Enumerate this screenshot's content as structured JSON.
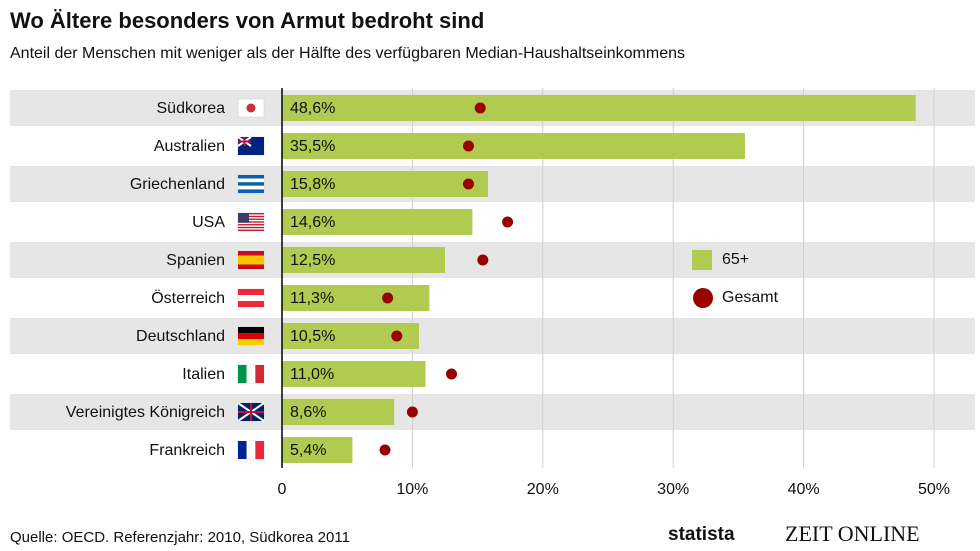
{
  "chart_data": {
    "type": "bar",
    "orientation": "horizontal",
    "title": "Wo Ältere besonders von Armut bedroht sind",
    "subtitle": "Anteil der Menschen mit weniger als der Hälfte des verfügbaren Median-Haushaltseinkommens",
    "categories": [
      "Südkorea",
      "Australien",
      "Griechenland",
      "USA",
      "Spanien",
      "Österreich",
      "Deutschland",
      "Italien",
      "Vereinigtes Königreich",
      "Frankreich"
    ],
    "series": [
      {
        "name": "65+",
        "color": "#b0cb4f",
        "marker": "bar",
        "values": [
          48.6,
          35.5,
          15.8,
          14.6,
          12.5,
          11.3,
          10.5,
          11.0,
          8.6,
          5.4
        ],
        "value_labels": [
          "48,6%",
          "35,5%",
          "15,8%",
          "14,6%",
          "12,5%",
          "11,3%",
          "10,5%",
          "11,0%",
          "8,6%",
          "5,4%"
        ]
      },
      {
        "name": "Gesamt",
        "color": "#990000",
        "marker": "dot",
        "values": [
          15.2,
          14.3,
          14.3,
          17.3,
          15.4,
          8.1,
          8.8,
          13.0,
          10.0,
          7.9
        ]
      }
    ],
    "xlim": [
      0,
      53.5
    ],
    "xticks": [
      0,
      {
        "value": 10,
        "label": "10%"
      },
      {
        "value": 20,
        "label": "20%"
      },
      {
        "value": 30,
        "label": "30%"
      },
      {
        "value": 40,
        "label": "40%"
      },
      {
        "value": 50,
        "label": "50%"
      }
    ],
    "grid": true,
    "source": "Quelle: OECD. Referenzjahr: 2010, Südkorea 2011",
    "branding": [
      "statista",
      "ZEIT ONLINE"
    ]
  }
}
